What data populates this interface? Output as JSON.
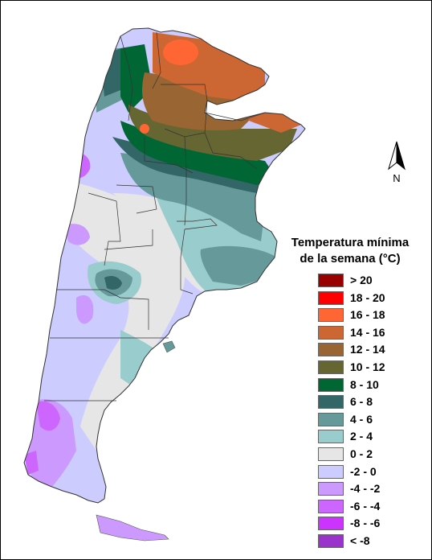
{
  "legend": {
    "title_line1": "Temperatura mínima",
    "title_line2": "de la semana (°C)",
    "items": [
      {
        "label": "> 20",
        "color": "#990000"
      },
      {
        "label": "18 - 20",
        "color": "#ff0000"
      },
      {
        "label": "16 - 18",
        "color": "#ff6633"
      },
      {
        "label": "14 - 16",
        "color": "#cc6633"
      },
      {
        "label": "12 - 14",
        "color": "#996633"
      },
      {
        "label": "10 - 12",
        "color": "#666633"
      },
      {
        "label": "8 - 10",
        "color": "#006633"
      },
      {
        "label": "6 - 8",
        "color": "#336666"
      },
      {
        "label": "4 - 6",
        "color": "#669999"
      },
      {
        "label": "2 - 4",
        "color": "#99cccc"
      },
      {
        "label": "0 - 2",
        "color": "#e6e6e6"
      },
      {
        "label": "-2 - 0",
        "color": "#ccccff"
      },
      {
        "label": "-4 - -2",
        "color": "#cc99ff"
      },
      {
        "label": "-6 - -4",
        "color": "#cc66ff"
      },
      {
        "label": "-8 - -6",
        "color": "#cc33ff"
      },
      {
        "label": "< -8",
        "color": "#9933cc"
      }
    ]
  },
  "north_arrow": {
    "label": "N",
    "icon": "north-arrow-icon"
  }
}
